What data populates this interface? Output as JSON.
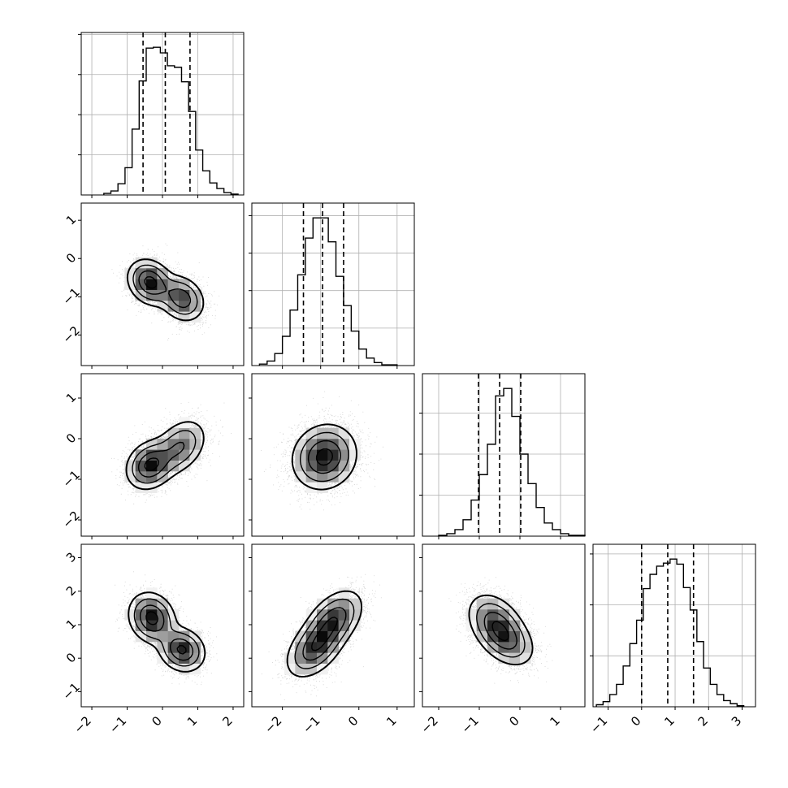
{
  "chart_data": {
    "type": "corner",
    "title": "",
    "grid": true,
    "parameter_names": [
      "",
      "",
      "",
      ""
    ],
    "quantile_line_style": "dashed",
    "contour_levels_sigma": [
      0.5,
      1.0,
      1.5,
      2.0
    ],
    "colors": {
      "line": "#000000",
      "grid": "#b0b0b0",
      "points": "#000000"
    },
    "parameters": [
      {
        "axis_range": [
          -2.3,
          2.3
        ],
        "ticks": [
          -2,
          -1,
          0,
          1,
          2
        ],
        "tick_labels": [
          "−2",
          "−1",
          "0",
          "1",
          "2"
        ],
        "quantiles": [
          -0.55,
          0.08,
          0.78
        ],
        "histogram": {
          "bin_edges": [
            -1.66,
            -1.46,
            -1.26,
            -1.06,
            -0.86,
            -0.66,
            -0.46,
            -0.26,
            -0.06,
            0.14,
            0.34,
            0.54,
            0.74,
            0.94,
            1.14,
            1.34,
            1.54,
            1.74,
            1.94,
            2.14
          ],
          "counts": [
            2,
            5,
            14,
            34,
            82,
            142,
            183,
            184,
            177,
            161,
            159,
            141,
            104,
            56,
            30,
            15,
            8,
            3,
            1
          ]
        }
      },
      {
        "axis_range": [
          -2.8,
          1.45
        ],
        "ticks": [
          -2,
          -1,
          0,
          1
        ],
        "tick_labels": [
          "−2",
          "−1",
          "0",
          "1"
        ],
        "quantiles": [
          -1.45,
          -0.95,
          -0.4
        ],
        "histogram": {
          "bin_edges": [
            -2.6,
            -2.4,
            -2.2,
            -2.0,
            -1.8,
            -1.6,
            -1.4,
            -1.2,
            -1.0,
            -0.8,
            -0.6,
            -0.4,
            -0.2,
            0.0,
            0.2,
            0.4,
            0.6,
            0.8,
            1.0
          ],
          "counts": [
            2,
            6,
            16,
            39,
            74,
            121,
            170,
            197,
            197,
            165,
            119,
            80,
            46,
            22,
            10,
            4,
            1,
            1
          ]
        }
      },
      {
        "axis_range": [
          -2.4,
          1.6
        ],
        "ticks": [
          -2,
          -1,
          0,
          1
        ],
        "tick_labels": [
          "−2",
          "−1",
          "0",
          "1"
        ],
        "quantiles": [
          -1.02,
          -0.5,
          0.02
        ],
        "histogram": {
          "bin_edges": [
            -2.0,
            -1.8,
            -1.6,
            -1.4,
            -1.2,
            -1.0,
            -0.8,
            -0.6,
            -0.4,
            -0.2,
            0.0,
            0.2,
            0.4,
            0.6,
            0.8,
            1.0,
            1.2,
            1.4,
            1.6
          ],
          "counts": [
            1,
            3,
            8,
            20,
            44,
            75,
            112,
            171,
            180,
            146,
            100,
            64,
            35,
            16,
            8,
            3,
            1,
            1
          ]
        }
      },
      {
        "axis_range": [
          -1.45,
          3.4
        ],
        "ticks": [
          -1,
          0,
          1,
          2,
          3
        ],
        "tick_labels": [
          "−1",
          "0",
          "1",
          "2",
          "3"
        ],
        "quantiles": [
          0.0,
          0.78,
          1.55
        ],
        "histogram": {
          "bin_edges": [
            -1.35,
            -1.15,
            -0.95,
            -0.75,
            -0.55,
            -0.35,
            -0.15,
            0.05,
            0.25,
            0.45,
            0.65,
            0.85,
            1.05,
            1.25,
            1.45,
            1.65,
            1.85,
            2.05,
            2.25,
            2.45,
            2.65,
            2.85,
            3.05
          ],
          "counts": [
            2,
            5,
            12,
            22,
            40,
            62,
            85,
            116,
            130,
            138,
            141,
            145,
            140,
            117,
            95,
            64,
            38,
            22,
            12,
            6,
            3,
            1
          ]
        }
      }
    ],
    "joint_modes": [
      {
        "x": 0,
        "y": 1,
        "modes": [
          {
            "mx": -0.35,
            "my": -0.62,
            "sx": 0.32,
            "sy": 0.3,
            "rho": -0.2,
            "w": 0.55
          },
          {
            "mx": 0.55,
            "my": -1.05,
            "sx": 0.32,
            "sy": 0.3,
            "rho": -0.2,
            "w": 0.45
          }
        ]
      },
      {
        "x": 0,
        "y": 2,
        "modes": [
          {
            "mx": -0.35,
            "my": -0.65,
            "sx": 0.34,
            "sy": 0.3,
            "rho": 0.2,
            "w": 0.55
          },
          {
            "mx": 0.5,
            "my": -0.2,
            "sx": 0.38,
            "sy": 0.35,
            "rho": 0.35,
            "w": 0.45
          }
        ]
      },
      {
        "x": 0,
        "y": 3,
        "modes": [
          {
            "mx": -0.3,
            "my": 1.2,
            "sx": 0.33,
            "sy": 0.38,
            "rho": -0.15,
            "w": 0.55
          },
          {
            "mx": 0.55,
            "my": 0.25,
            "sx": 0.33,
            "sy": 0.33,
            "rho": -0.15,
            "w": 0.45
          }
        ]
      },
      {
        "x": 1,
        "y": 2,
        "modes": [
          {
            "mx": -0.9,
            "my": -0.45,
            "sx": 0.42,
            "sy": 0.4,
            "rho": 0.1,
            "w": 1.0
          }
        ]
      },
      {
        "x": 1,
        "y": 3,
        "modes": [
          {
            "mx": -1.15,
            "my": 0.3,
            "sx": 0.38,
            "sy": 0.45,
            "rho": 0.45,
            "w": 0.5
          },
          {
            "mx": -0.65,
            "my": 1.15,
            "sx": 0.38,
            "sy": 0.45,
            "rho": 0.45,
            "w": 0.5
          }
        ]
      },
      {
        "x": 2,
        "y": 3,
        "modes": [
          {
            "mx": -0.6,
            "my": 1.05,
            "sx": 0.35,
            "sy": 0.45,
            "rho": -0.35,
            "w": 0.6
          },
          {
            "mx": -0.3,
            "my": 0.5,
            "sx": 0.35,
            "sy": 0.4,
            "rho": -0.35,
            "w": 0.4
          }
        ]
      }
    ]
  }
}
